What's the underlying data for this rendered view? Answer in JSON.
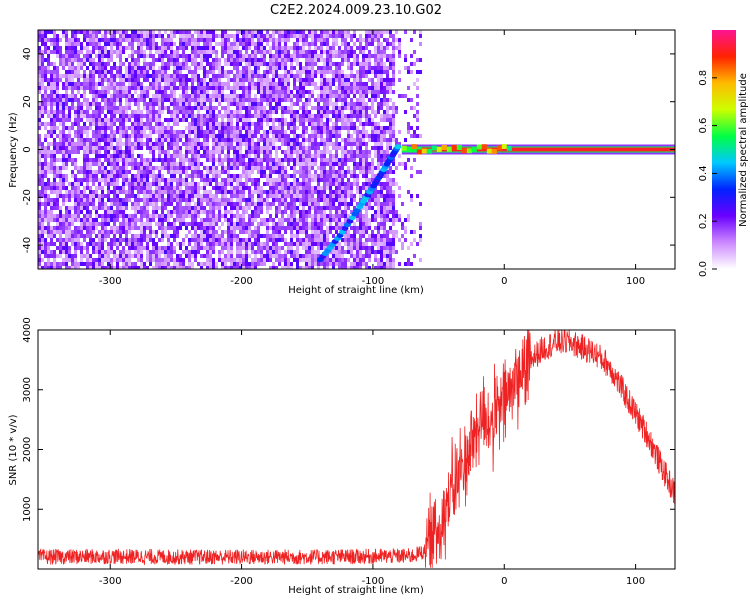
{
  "title": "C2E2.2024.009.23.10.G02",
  "colors": {
    "snr_line": "#ee2222",
    "colormap": [
      "#ffffff",
      "#cc88ff",
      "#6a00ff",
      "#0022ff",
      "#00c8ff",
      "#00ff44",
      "#ccff00",
      "#ffbb00",
      "#ff2200",
      "#ff1493"
    ]
  },
  "chart_data": [
    {
      "type": "heatmap",
      "xlabel": "Height of straight line (km)",
      "ylabel": "Frequency (Hz)",
      "xlim": [
        -355,
        130
      ],
      "ylim": [
        -50,
        50
      ],
      "xticks": [
        -300,
        -200,
        -100,
        0,
        100
      ],
      "yticks": [
        -40,
        -20,
        0,
        20,
        40
      ],
      "grid": false,
      "features": {
        "noise_region_x": [
          -355,
          -78
        ],
        "chirp_trace": [
          {
            "x": -140,
            "y": -46
          },
          {
            "x": -125,
            "y": -36
          },
          {
            "x": -110,
            "y": -24
          },
          {
            "x": -98,
            "y": -14
          },
          {
            "x": -88,
            "y": -5
          },
          {
            "x": -80,
            "y": 2
          }
        ],
        "constant_line": {
          "x_start": -78,
          "x_end": 130,
          "y": 0
        }
      },
      "colorbar": {
        "label": "Normalized spectral amplitude",
        "range": [
          0,
          1
        ],
        "ticks": [
          "0.0",
          "0.2",
          "0.4",
          "0.6",
          "0.8"
        ]
      }
    },
    {
      "type": "line",
      "xlabel": "Height of straight line (km)",
      "ylabel": "SNR (10 * v/v)",
      "xlim": [
        -355,
        130
      ],
      "ylim": [
        0,
        4000
      ],
      "xticks": [
        -300,
        -200,
        -100,
        0,
        100
      ],
      "yticks": [
        1000,
        2000,
        3000,
        4000
      ],
      "grid": false,
      "series": [
        {
          "x": [
            -355,
            -300,
            -250,
            -200,
            -150,
            -100,
            -70,
            -60,
            -50,
            -45,
            -40,
            -30,
            -20,
            -15,
            -10,
            0,
            10,
            20,
            30,
            40,
            50,
            60,
            70,
            80,
            90,
            100,
            110,
            120,
            130
          ],
          "values": [
            200,
            210,
            200,
            200,
            200,
            210,
            220,
            300,
            700,
            1000,
            1300,
            1800,
            2400,
            2600,
            2400,
            2800,
            3200,
            3500,
            3700,
            3800,
            3800,
            3700,
            3600,
            3400,
            3000,
            2600,
            2200,
            1700,
            1250
          ]
        }
      ]
    }
  ]
}
